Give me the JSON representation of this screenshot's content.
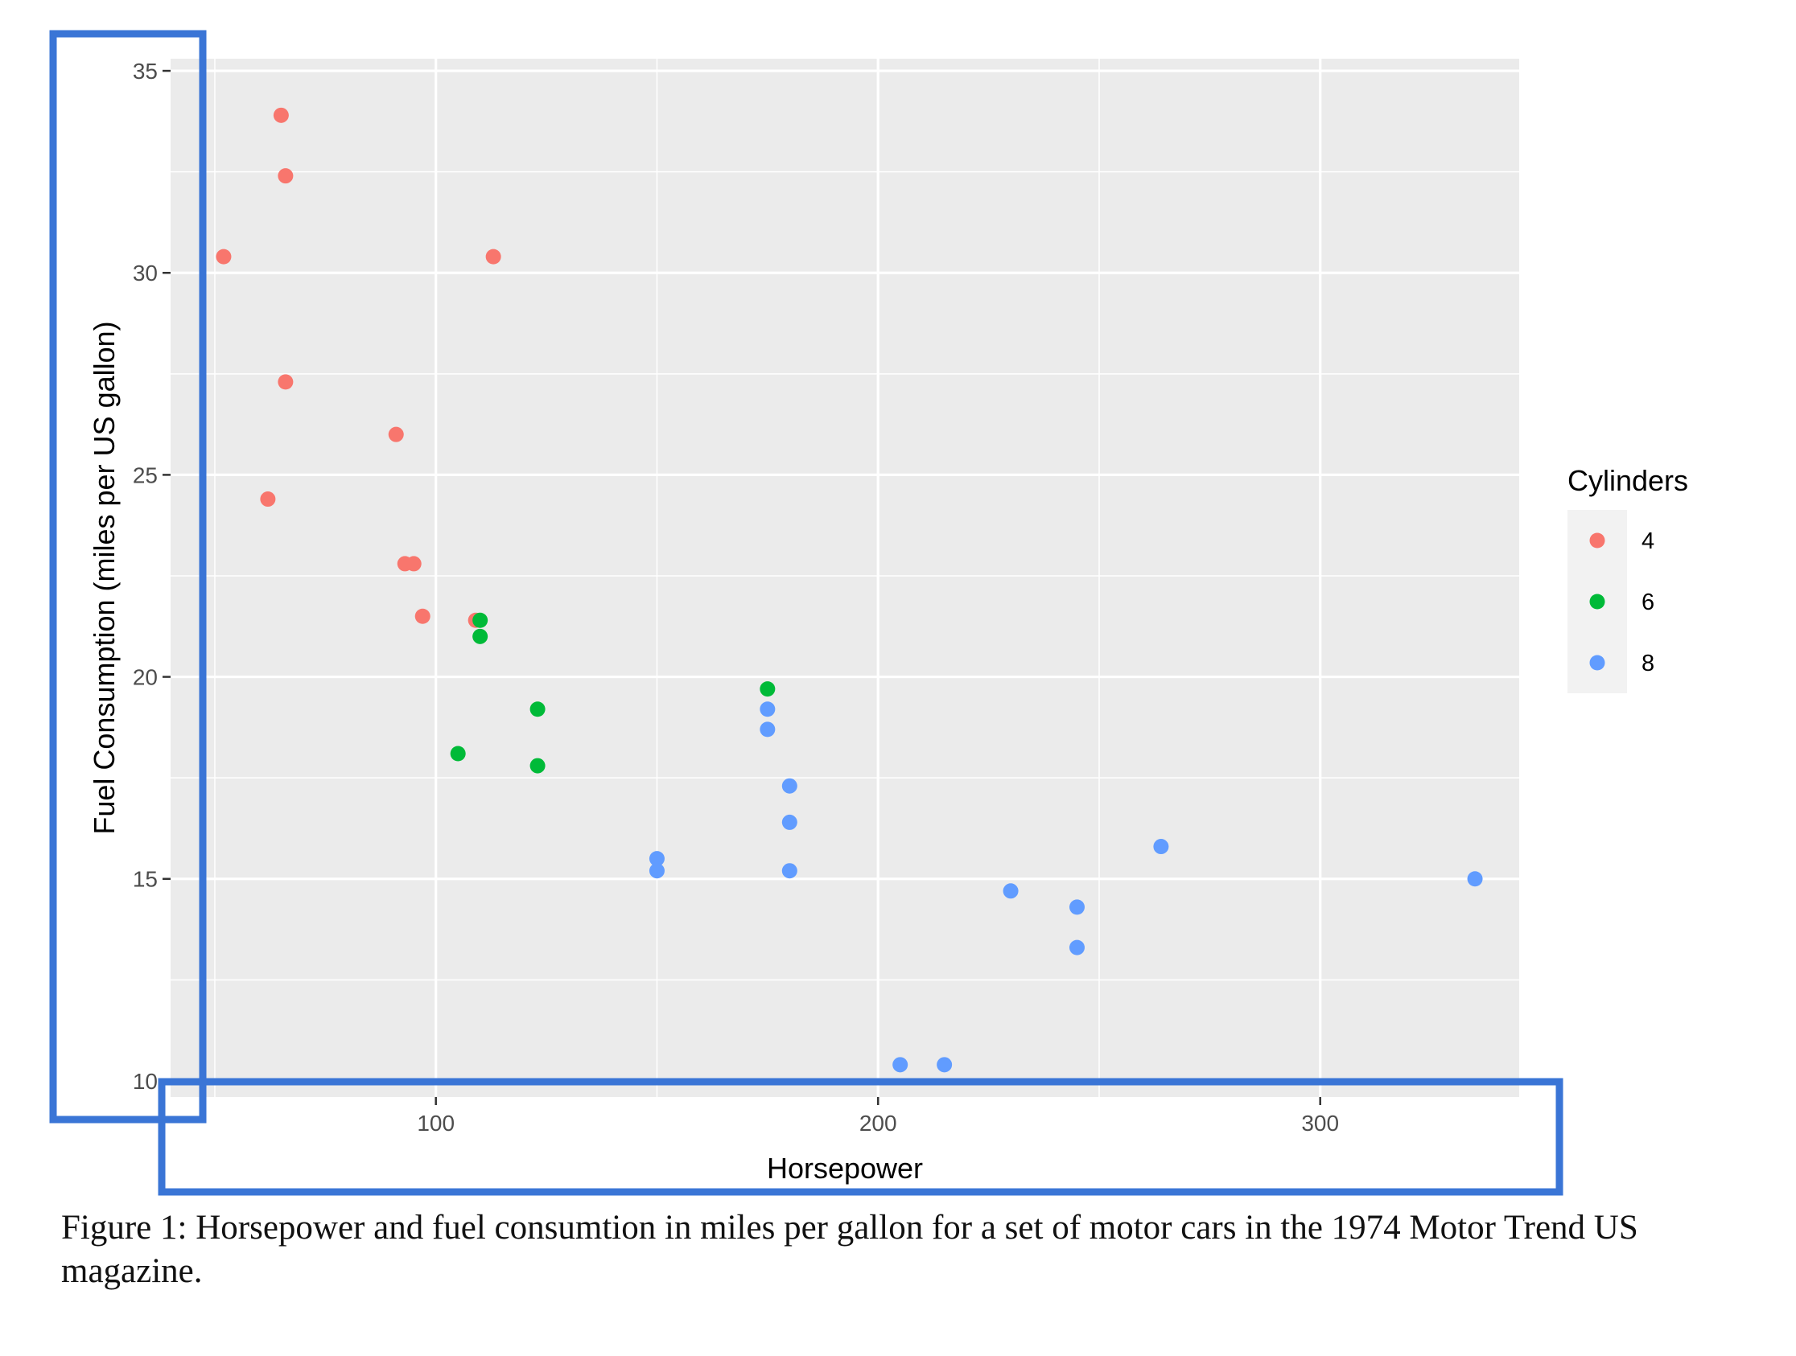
{
  "chart_data": {
    "type": "scatter",
    "title": "",
    "xlabel": "Horsepower",
    "ylabel": "Fuel Consumption (miles per US gallon)",
    "xlim": [
      40,
      345
    ],
    "ylim": [
      9.6,
      35.3
    ],
    "x_ticks": [
      100,
      200,
      300
    ],
    "y_ticks": [
      10,
      15,
      20,
      25,
      30,
      35
    ],
    "grid": true,
    "legend": {
      "title": "Cylinders",
      "position": "right"
    },
    "series": [
      {
        "name": "4",
        "color": "#F8766D",
        "points": [
          {
            "x": 52,
            "y": 30.4
          },
          {
            "x": 62,
            "y": 24.4
          },
          {
            "x": 65,
            "y": 33.9
          },
          {
            "x": 66,
            "y": 32.4
          },
          {
            "x": 66,
            "y": 27.3
          },
          {
            "x": 91,
            "y": 26.0
          },
          {
            "x": 93,
            "y": 22.8
          },
          {
            "x": 95,
            "y": 22.8
          },
          {
            "x": 97,
            "y": 21.5
          },
          {
            "x": 109,
            "y": 21.4
          },
          {
            "x": 113,
            "y": 30.4
          }
        ]
      },
      {
        "name": "6",
        "color": "#00BA38",
        "points": [
          {
            "x": 105,
            "y": 18.1
          },
          {
            "x": 110,
            "y": 21.0
          },
          {
            "x": 110,
            "y": 21.4
          },
          {
            "x": 123,
            "y": 19.2
          },
          {
            "x": 123,
            "y": 17.8
          },
          {
            "x": 175,
            "y": 19.7
          }
        ]
      },
      {
        "name": "8",
        "color": "#619CFF",
        "points": [
          {
            "x": 150,
            "y": 15.5
          },
          {
            "x": 150,
            "y": 15.2
          },
          {
            "x": 175,
            "y": 19.2
          },
          {
            "x": 175,
            "y": 18.7
          },
          {
            "x": 180,
            "y": 17.3
          },
          {
            "x": 180,
            "y": 16.4
          },
          {
            "x": 180,
            "y": 15.2
          },
          {
            "x": 205,
            "y": 10.4
          },
          {
            "x": 215,
            "y": 10.4
          },
          {
            "x": 230,
            "y": 14.7
          },
          {
            "x": 245,
            "y": 14.3
          },
          {
            "x": 245,
            "y": 13.3
          },
          {
            "x": 264,
            "y": 15.8
          },
          {
            "x": 335,
            "y": 15.0
          }
        ]
      }
    ]
  },
  "caption": "Figure 1: Horsepower and fuel consumtion in miles per gallon for a set of motor cars in the 1974 Motor Trend US magazine.",
  "annotation_color": "#3A75D6"
}
